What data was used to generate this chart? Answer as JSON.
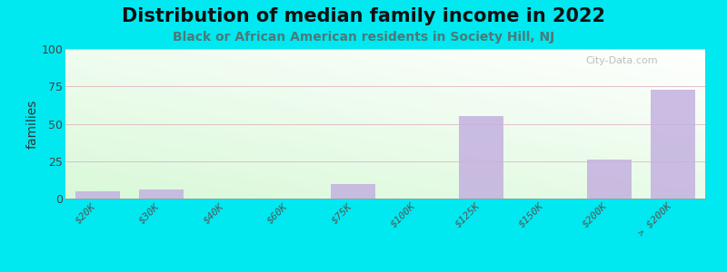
{
  "title": "Distribution of median family income in 2022",
  "subtitle": "Black or African American residents in Society Hill, NJ",
  "categories": [
    "$20K",
    "$30K",
    "$40K",
    "$60K",
    "$75K",
    "$100K",
    "$125K",
    "$150K",
    "$200K",
    "> $200K"
  ],
  "values": [
    5,
    6,
    0,
    0,
    10,
    0,
    55,
    0,
    26,
    73
  ],
  "bar_color": "#c5b3e0",
  "background_outer": "#00e8f0",
  "ylabel": "families",
  "ylim": [
    0,
    100
  ],
  "yticks": [
    0,
    25,
    50,
    75,
    100
  ],
  "grid_color": "#e0b0c0",
  "title_fontsize": 15,
  "subtitle_fontsize": 10,
  "watermark": "City-Data.com"
}
